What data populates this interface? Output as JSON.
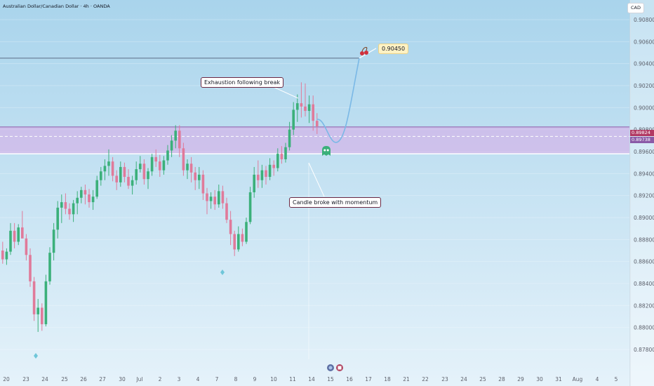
{
  "header": {
    "title": "Australian Dollar/Canadian Dollar · 4h · OANDA",
    "currency": "CAD"
  },
  "price_tags": {
    "upper": "0.89824",
    "lower": "0.89738"
  },
  "annotations": {
    "exhaustion": "Exhaustion following break",
    "momentum": "Candle broke with momentum",
    "target": "0.90450"
  },
  "colors": {
    "background_top": "#a9d4ec",
    "background_bottom": "#e5f2fa",
    "bull": "#3bb07a",
    "bear": "#e07a9a",
    "zone": "#d9a8e6",
    "projection": "#7ab8e6"
  },
  "chart_data": {
    "type": "candlestick",
    "title": "Australian Dollar/Canadian Dollar · 4h · OANDA",
    "currency": "CAD",
    "y_ticks": [
      0.908,
      0.906,
      0.904,
      0.902,
      0.9,
      0.898,
      0.896,
      0.894,
      0.892,
      0.89,
      0.888,
      0.886,
      0.884,
      0.882,
      0.88,
      0.878
    ],
    "y_tick_labels": [
      "0.90800",
      "0.90600",
      "0.90400",
      "0.90200",
      "0.90000",
      "0.89800",
      "0.89600",
      "0.89400",
      "0.89200",
      "0.89000",
      "0.88800",
      "0.88600",
      "0.88400",
      "0.88200",
      "0.88000",
      "0.87800"
    ],
    "ylim": [
      0.8774,
      0.9113
    ],
    "x_tick_labels": [
      "20",
      "23",
      "24",
      "25",
      "26",
      "27",
      "30",
      "Jul",
      "2",
      "3",
      "4",
      "7",
      "8",
      "9",
      "10",
      "11",
      "14",
      "15",
      "16",
      "17",
      "18",
      "21",
      "22",
      "23",
      "24",
      "25",
      "28",
      "29",
      "30",
      "31",
      "Aug",
      "4",
      "5"
    ],
    "zone": {
      "top": 0.89824,
      "bottom": 0.8958,
      "mid": 0.89738
    },
    "resistance_level": 0.9045,
    "target": 0.9045,
    "ohlc": [
      [
        0.887,
        0.8878,
        0.8858,
        0.8862
      ],
      [
        0.8862,
        0.8872,
        0.8857,
        0.8869
      ],
      [
        0.8869,
        0.8895,
        0.8866,
        0.8888
      ],
      [
        0.8888,
        0.8895,
        0.8872,
        0.8878
      ],
      [
        0.8878,
        0.8894,
        0.8875,
        0.8891
      ],
      [
        0.8891,
        0.8906,
        0.8883,
        0.8881
      ],
      [
        0.8881,
        0.8885,
        0.8861,
        0.8866
      ],
      [
        0.8866,
        0.8872,
        0.8837,
        0.8842
      ],
      [
        0.8842,
        0.8846,
        0.8806,
        0.8812
      ],
      [
        0.8812,
        0.8826,
        0.8796,
        0.8818
      ],
      [
        0.8818,
        0.8822,
        0.8797,
        0.8803
      ],
      [
        0.8803,
        0.8848,
        0.8801,
        0.8842
      ],
      [
        0.8842,
        0.8873,
        0.8839,
        0.8868
      ],
      [
        0.8868,
        0.8895,
        0.8861,
        0.8889
      ],
      [
        0.8889,
        0.8915,
        0.8881,
        0.8909
      ],
      [
        0.8909,
        0.8921,
        0.8895,
        0.8914
      ],
      [
        0.8914,
        0.8922,
        0.8903,
        0.8908
      ],
      [
        0.8908,
        0.8913,
        0.8898,
        0.8903
      ],
      [
        0.8903,
        0.8916,
        0.8896,
        0.8913
      ],
      [
        0.8913,
        0.8924,
        0.8903,
        0.8918
      ],
      [
        0.8918,
        0.8928,
        0.8913,
        0.8925
      ],
      [
        0.8925,
        0.893,
        0.8912,
        0.8921
      ],
      [
        0.8921,
        0.8926,
        0.8909,
        0.8914
      ],
      [
        0.8914,
        0.8925,
        0.8907,
        0.8919
      ],
      [
        0.8919,
        0.8938,
        0.8917,
        0.8934
      ],
      [
        0.8934,
        0.8946,
        0.8929,
        0.8942
      ],
      [
        0.8942,
        0.8953,
        0.8934,
        0.8947
      ],
      [
        0.8947,
        0.8962,
        0.8938,
        0.8951
      ],
      [
        0.8951,
        0.8955,
        0.8933,
        0.8938
      ],
      [
        0.8938,
        0.8943,
        0.8925,
        0.8932
      ],
      [
        0.8932,
        0.8951,
        0.8928,
        0.8946
      ],
      [
        0.8946,
        0.895,
        0.8932,
        0.8937
      ],
      [
        0.8937,
        0.8944,
        0.8926,
        0.8929
      ],
      [
        0.8929,
        0.8938,
        0.8921,
        0.8934
      ],
      [
        0.8934,
        0.8951,
        0.893,
        0.8944
      ],
      [
        0.8944,
        0.8956,
        0.8941,
        0.8949
      ],
      [
        0.8949,
        0.8953,
        0.893,
        0.8935
      ],
      [
        0.8935,
        0.8945,
        0.8926,
        0.8942
      ],
      [
        0.8942,
        0.8958,
        0.8938,
        0.8955
      ],
      [
        0.8955,
        0.8962,
        0.8946,
        0.8951
      ],
      [
        0.8951,
        0.8957,
        0.8937,
        0.8943
      ],
      [
        0.8943,
        0.8956,
        0.8939,
        0.8952
      ],
      [
        0.8952,
        0.8966,
        0.8948,
        0.8961
      ],
      [
        0.8961,
        0.8975,
        0.8955,
        0.897
      ],
      [
        0.897,
        0.8984,
        0.8963,
        0.8979
      ],
      [
        0.8979,
        0.8984,
        0.8955,
        0.8963
      ],
      [
        0.8963,
        0.8968,
        0.8938,
        0.8943
      ],
      [
        0.8943,
        0.8953,
        0.8935,
        0.8949
      ],
      [
        0.8949,
        0.8955,
        0.8932,
        0.8941
      ],
      [
        0.8941,
        0.8946,
        0.8925,
        0.8934
      ],
      [
        0.8934,
        0.8946,
        0.8926,
        0.8939
      ],
      [
        0.8939,
        0.8943,
        0.8916,
        0.8922
      ],
      [
        0.8922,
        0.8927,
        0.8903,
        0.8915
      ],
      [
        0.8915,
        0.8923,
        0.8908,
        0.8919
      ],
      [
        0.8919,
        0.8925,
        0.8907,
        0.8912
      ],
      [
        0.8912,
        0.893,
        0.8909,
        0.8924
      ],
      [
        0.8924,
        0.8929,
        0.8908,
        0.8913
      ],
      [
        0.8913,
        0.8918,
        0.8895,
        0.8898
      ],
      [
        0.8898,
        0.8906,
        0.8875,
        0.8885
      ],
      [
        0.8885,
        0.8888,
        0.8865,
        0.8871
      ],
      [
        0.8871,
        0.8892,
        0.8869,
        0.8885
      ],
      [
        0.8885,
        0.889,
        0.8874,
        0.8878
      ],
      [
        0.8878,
        0.89,
        0.8876,
        0.8896
      ],
      [
        0.8896,
        0.8928,
        0.8894,
        0.8923
      ],
      [
        0.8923,
        0.8946,
        0.8918,
        0.8939
      ],
      [
        0.8939,
        0.8952,
        0.8927,
        0.8934
      ],
      [
        0.8934,
        0.8948,
        0.8927,
        0.8943
      ],
      [
        0.8943,
        0.8947,
        0.893,
        0.8937
      ],
      [
        0.8937,
        0.8954,
        0.8934,
        0.8948
      ],
      [
        0.8948,
        0.8952,
        0.8938,
        0.8945
      ],
      [
        0.8945,
        0.8963,
        0.8942,
        0.8958
      ],
      [
        0.8958,
        0.8965,
        0.8949,
        0.8953
      ],
      [
        0.8953,
        0.8968,
        0.895,
        0.8964
      ],
      [
        0.8964,
        0.8987,
        0.8961,
        0.898
      ],
      [
        0.898,
        0.9005,
        0.8975,
        0.8998
      ],
      [
        0.8998,
        0.9012,
        0.8987,
        0.9004
      ],
      [
        0.9004,
        0.9023,
        0.8991,
        0.9001
      ],
      [
        0.9001,
        0.9022,
        0.8992,
        0.8997
      ],
      [
        0.8997,
        0.9011,
        0.8986,
        0.9003
      ],
      [
        0.9003,
        0.9011,
        0.8979,
        0.8988
      ],
      [
        0.8988,
        0.8995,
        0.8976,
        0.8983
      ]
    ],
    "time_span": [
      "19 Jun 2025",
      "14 Jul 2025"
    ]
  }
}
